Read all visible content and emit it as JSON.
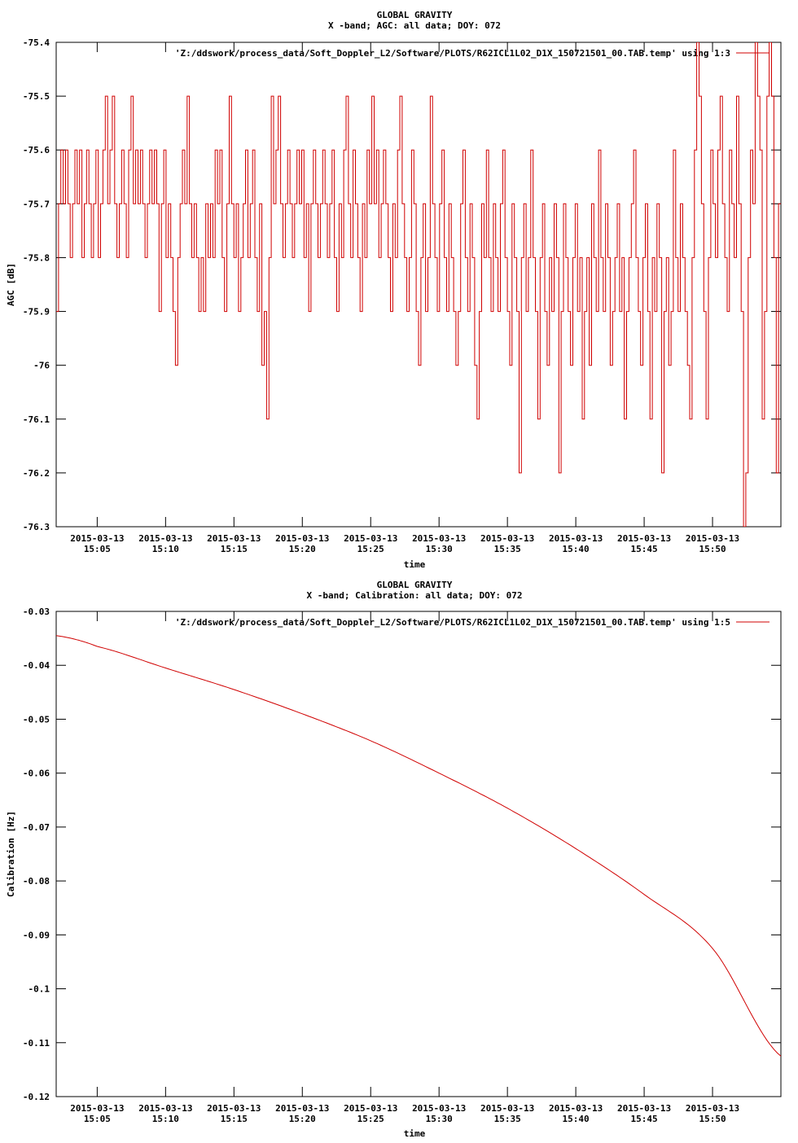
{
  "chart_data": [
    {
      "type": "line",
      "title": "GLOBAL GRAVITY",
      "subtitle": "X -band; AGC: all data; DOY: 072",
      "xlabel": "time",
      "ylabel": "AGC [dB]",
      "legend": "'Z:/ddswork/process_data/Soft_Doppler_L2/Software/PLOTS/R62ICL1L02_D1X_150721501_00.TAB.temp' using 1:3",
      "legend_position": "top-right",
      "color": "#d00000",
      "ylim": [
        -76.3,
        -75.4
      ],
      "yticks": [
        -75.4,
        -75.5,
        -75.6,
        -75.7,
        -75.8,
        -75.9,
        -76,
        -76.1,
        -76.2,
        -76.3
      ],
      "ytick_labels": [
        "-75.4",
        "-75.5",
        "-75.6",
        "-75.7",
        "-75.8",
        "-75.9",
        "-76",
        "-76.1",
        "-76.2",
        "-76.3"
      ],
      "xlim_minutes": [
        2.0,
        55.0
      ],
      "xtick_minutes": [
        5,
        10,
        15,
        20,
        25,
        30,
        35,
        40,
        45,
        50
      ],
      "xtick_dates": [
        "2015-03-13",
        "2015-03-13",
        "2015-03-13",
        "2015-03-13",
        "2015-03-13",
        "2015-03-13",
        "2015-03-13",
        "2015-03-13",
        "2015-03-13",
        "2015-03-13"
      ],
      "xtick_times": [
        "15:05",
        "15:10",
        "15:15",
        "15:20",
        "15:25",
        "15:30",
        "15:35",
        "15:40",
        "15:45",
        "15:50"
      ],
      "x_start": "15:02",
      "x_end": "15:55",
      "data_start": "15:02",
      "data_end": "15:55",
      "values": [
        -75.9,
        -75.7,
        -75.6,
        -75.7,
        -75.6,
        -75.7,
        -75.8,
        -75.7,
        -75.6,
        -75.7,
        -75.6,
        -75.8,
        -75.7,
        -75.6,
        -75.7,
        -75.8,
        -75.7,
        -75.6,
        -75.8,
        -75.7,
        -75.6,
        -75.5,
        -75.7,
        -75.6,
        -75.5,
        -75.7,
        -75.8,
        -75.7,
        -75.6,
        -75.7,
        -75.8,
        -75.6,
        -75.5,
        -75.7,
        -75.6,
        -75.7,
        -75.6,
        -75.7,
        -75.8,
        -75.7,
        -75.6,
        -75.7,
        -75.6,
        -75.7,
        -75.9,
        -75.7,
        -75.6,
        -75.8,
        -75.7,
        -75.8,
        -75.9,
        -76,
        -75.8,
        -75.7,
        -75.6,
        -75.7,
        -75.5,
        -75.7,
        -75.8,
        -75.7,
        -75.8,
        -75.9,
        -75.8,
        -75.9,
        -75.7,
        -75.8,
        -75.7,
        -75.8,
        -75.6,
        -75.7,
        -75.6,
        -75.8,
        -75.9,
        -75.7,
        -75.5,
        -75.7,
        -75.8,
        -75.7,
        -75.9,
        -75.8,
        -75.7,
        -75.6,
        -75.8,
        -75.7,
        -75.6,
        -75.8,
        -75.9,
        -75.7,
        -76,
        -75.9,
        -76.1,
        -75.8,
        -75.5,
        -75.7,
        -75.6,
        -75.5,
        -75.7,
        -75.8,
        -75.7,
        -75.6,
        -75.7,
        -75.8,
        -75.7,
        -75.6,
        -75.7,
        -75.6,
        -75.8,
        -75.7,
        -75.9,
        -75.7,
        -75.6,
        -75.7,
        -75.8,
        -75.7,
        -75.6,
        -75.7,
        -75.8,
        -75.7,
        -75.6,
        -75.8,
        -75.9,
        -75.7,
        -75.8,
        -75.6,
        -75.5,
        -75.7,
        -75.8,
        -75.6,
        -75.7,
        -75.8,
        -75.9,
        -75.7,
        -75.8,
        -75.6,
        -75.7,
        -75.5,
        -75.7,
        -75.6,
        -75.8,
        -75.7,
        -75.6,
        -75.7,
        -75.8,
        -75.9,
        -75.7,
        -75.8,
        -75.6,
        -75.5,
        -75.7,
        -75.8,
        -75.9,
        -75.8,
        -75.6,
        -75.7,
        -75.9,
        -76,
        -75.8,
        -75.7,
        -75.9,
        -75.8,
        -75.5,
        -75.7,
        -75.8,
        -75.9,
        -75.7,
        -75.6,
        -75.8,
        -75.9,
        -75.7,
        -75.8,
        -75.9,
        -76,
        -75.9,
        -75.7,
        -75.6,
        -75.8,
        -75.9,
        -75.7,
        -75.8,
        -76,
        -76.1,
        -75.9,
        -75.7,
        -75.8,
        -75.6,
        -75.8,
        -75.9,
        -75.7,
        -75.8,
        -75.9,
        -75.7,
        -75.6,
        -75.8,
        -75.9,
        -76,
        -75.7,
        -75.8,
        -75.9,
        -76.2,
        -75.8,
        -75.7,
        -75.9,
        -75.8,
        -75.6,
        -75.8,
        -75.9,
        -76.1,
        -75.8,
        -75.7,
        -75.9,
        -76,
        -75.8,
        -75.9,
        -75.7,
        -75.8,
        -76.2,
        -75.9,
        -75.7,
        -75.8,
        -75.9,
        -76,
        -75.8,
        -75.7,
        -75.9,
        -75.8,
        -76.1,
        -75.9,
        -75.8,
        -76,
        -75.7,
        -75.8,
        -75.9,
        -75.6,
        -75.8,
        -75.9,
        -75.7,
        -75.8,
        -76,
        -75.9,
        -75.8,
        -75.7,
        -75.9,
        -75.8,
        -76.1,
        -75.9,
        -75.8,
        -75.7,
        -75.6,
        -75.8,
        -75.9,
        -76,
        -75.8,
        -75.7,
        -75.9,
        -76.1,
        -75.8,
        -75.9,
        -75.7,
        -75.8,
        -76.2,
        -75.9,
        -75.8,
        -76,
        -75.9,
        -75.6,
        -75.8,
        -75.9,
        -75.7,
        -75.8,
        -75.9,
        -76,
        -76.1,
        -75.8,
        -75.6,
        -75.4,
        -75.5,
        -75.7,
        -75.9,
        -76.1,
        -75.8,
        -75.6,
        -75.7,
        -75.8,
        -75.6,
        -75.5,
        -75.7,
        -75.8,
        -75.9,
        -75.6,
        -75.7,
        -75.8,
        -75.5,
        -75.7,
        -75.9,
        -76.3,
        -76.2,
        -75.8,
        -75.6,
        -75.7,
        -75.4,
        -75.5,
        -75.6,
        -76.1,
        -75.9,
        -75.5,
        -75.4,
        -75.5,
        -75.8,
        -76.2,
        -75.7
      ]
    },
    {
      "type": "line",
      "title": "GLOBAL GRAVITY",
      "subtitle": "X -band; Calibration: all data; DOY: 072",
      "xlabel": "time",
      "ylabel": "Calibration [Hz]",
      "legend": "'Z:/ddswork/process_data/Soft_Doppler_L2/Software/PLOTS/R62ICL1L02_D1X_150721501_00.TAB.temp' using 1:5",
      "legend_position": "top-right",
      "color": "#d00000",
      "ylim": [
        -0.12,
        -0.03
      ],
      "yticks": [
        -0.03,
        -0.04,
        -0.05,
        -0.06,
        -0.07,
        -0.08,
        -0.09,
        -0.1,
        -0.11,
        -0.12
      ],
      "ytick_labels": [
        "-0.03",
        "-0.04",
        "-0.05",
        "-0.06",
        "-0.07",
        "-0.08",
        "-0.09",
        "-0.1",
        "-0.11",
        "-0.12"
      ],
      "xlim_minutes": [
        2.0,
        55.0
      ],
      "xtick_minutes": [
        5,
        10,
        15,
        20,
        25,
        30,
        35,
        40,
        45,
        50
      ],
      "xtick_dates": [
        "2015-03-13",
        "2015-03-13",
        "2015-03-13",
        "2015-03-13",
        "2015-03-13",
        "2015-03-13",
        "2015-03-13",
        "2015-03-13",
        "2015-03-13",
        "2015-03-13"
      ],
      "xtick_times": [
        "15:05",
        "15:10",
        "15:15",
        "15:20",
        "15:25",
        "15:30",
        "15:35",
        "15:40",
        "15:45",
        "15:50"
      ],
      "x_start": "15:02",
      "x_end": "15:55",
      "x_minutes": [
        2,
        5,
        10,
        15,
        20,
        25,
        30,
        35,
        40,
        45,
        50,
        55
      ],
      "values": [
        -0.0345,
        -0.0365,
        -0.0405,
        -0.0445,
        -0.049,
        -0.054,
        -0.06,
        -0.0665,
        -0.074,
        -0.0825,
        -0.0925,
        -0.1125
      ]
    }
  ]
}
